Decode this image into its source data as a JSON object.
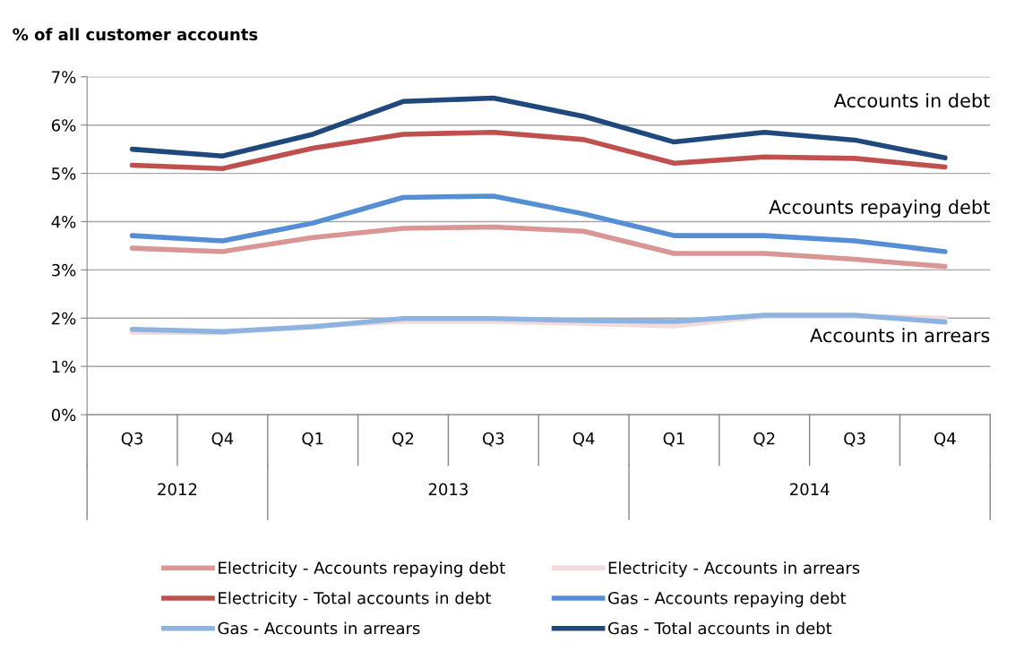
{
  "chart_data": {
    "type": "line",
    "ylabel": "% of all customer accounts",
    "categories": [
      "Q3",
      "Q4",
      "Q1",
      "Q2",
      "Q3",
      "Q4",
      "Q1",
      "Q2",
      "Q3",
      "Q4"
    ],
    "series": [
      {
        "name": "Electricity - Accounts repaying debt",
        "color": "#d99694",
        "values": [
          3.45,
          3.38,
          3.67,
          3.86,
          3.89,
          3.8,
          3.34,
          3.34,
          3.22,
          3.07
        ]
      },
      {
        "name": "Electricity - Accounts in arrears",
        "color": "#f2dcdb",
        "values": [
          1.71,
          1.7,
          1.84,
          1.93,
          1.93,
          1.89,
          1.84,
          2.04,
          2.04,
          2.0
        ]
      },
      {
        "name": "Electricity - Total accounts in debt",
        "color": "#c0504d",
        "values": [
          5.17,
          5.1,
          5.52,
          5.81,
          5.85,
          5.7,
          5.21,
          5.34,
          5.31,
          5.13
        ]
      },
      {
        "name": "Gas - Accounts repaying debt",
        "color": "#558ed5",
        "values": [
          3.71,
          3.6,
          3.97,
          4.5,
          4.53,
          4.16,
          3.71,
          3.71,
          3.6,
          3.38
        ]
      },
      {
        "name": "Gas - Accounts in arrears",
        "color": "#8db3e2",
        "values": [
          1.77,
          1.72,
          1.82,
          1.99,
          1.99,
          1.95,
          1.93,
          2.06,
          2.06,
          1.92
        ]
      },
      {
        "name": "Gas - Total accounts in debt",
        "color": "#1f497d",
        "values": [
          5.5,
          5.36,
          5.81,
          6.49,
          6.56,
          6.18,
          5.65,
          5.85,
          5.69,
          5.32
        ]
      }
    ],
    "annotations": [
      "Accounts in debt",
      "Accounts repaying debt",
      "Accounts in arrears",
      "2012",
      "2013",
      "2014"
    ],
    "ylim": [
      0,
      7
    ],
    "yticks": [
      {
        "value": 0,
        "label": "0%"
      },
      {
        "value": 1,
        "label": "1%"
      },
      {
        "value": 2,
        "label": "2%"
      },
      {
        "value": 3,
        "label": "3%"
      },
      {
        "value": 4,
        "label": "4%"
      },
      {
        "value": 5,
        "label": "5%"
      },
      {
        "value": 6,
        "label": "6%"
      },
      {
        "value": 7,
        "label": "7%"
      }
    ],
    "grid": "y",
    "legend": "bottom",
    "marker": "none",
    "line_style": "solid"
  }
}
